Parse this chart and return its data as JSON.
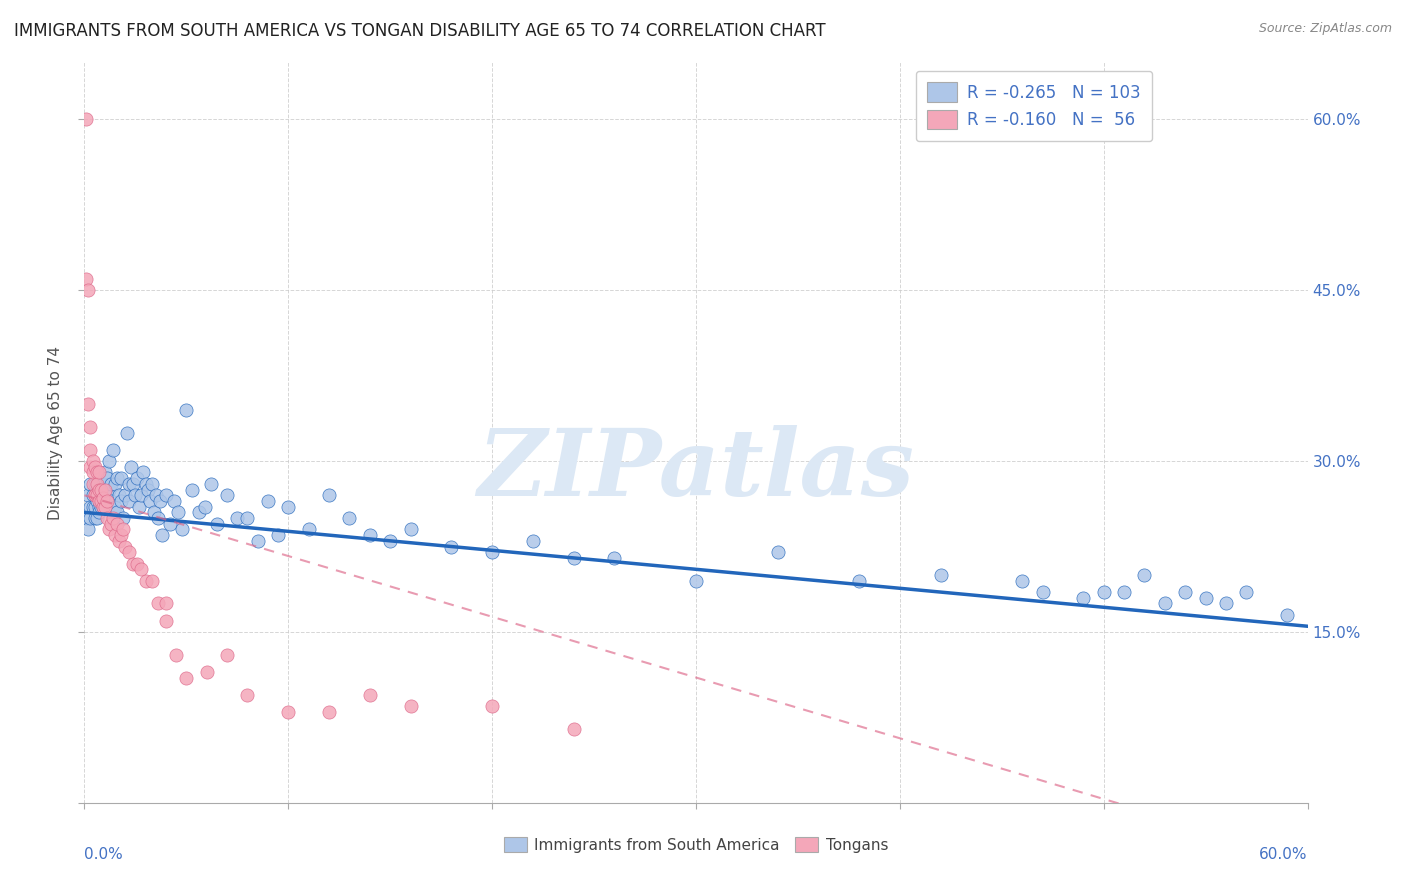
{
  "title": "IMMIGRANTS FROM SOUTH AMERICA VS TONGAN DISABILITY AGE 65 TO 74 CORRELATION CHART",
  "source": "Source: ZipAtlas.com",
  "ylabel": "Disability Age 65 to 74",
  "legend_blue_r": "-0.265",
  "legend_blue_n": "103",
  "legend_pink_r": "-0.160",
  "legend_pink_n": " 56",
  "blue_color": "#aec6e8",
  "pink_color": "#f4a7b9",
  "blue_line_color": "#2266bb",
  "pink_line_color": "#dd6688",
  "axis_color": "#4472c4",
  "watermark_color": "#dce8f5",
  "background_color": "#ffffff",
  "blue_scatter_x": [
    0.001,
    0.002,
    0.002,
    0.003,
    0.003,
    0.003,
    0.004,
    0.004,
    0.005,
    0.005,
    0.005,
    0.006,
    0.006,
    0.006,
    0.007,
    0.007,
    0.007,
    0.008,
    0.008,
    0.009,
    0.009,
    0.01,
    0.01,
    0.011,
    0.011,
    0.012,
    0.012,
    0.013,
    0.013,
    0.014,
    0.015,
    0.015,
    0.016,
    0.016,
    0.017,
    0.018,
    0.018,
    0.019,
    0.02,
    0.021,
    0.022,
    0.022,
    0.023,
    0.024,
    0.025,
    0.026,
    0.027,
    0.028,
    0.029,
    0.03,
    0.031,
    0.032,
    0.033,
    0.034,
    0.035,
    0.036,
    0.037,
    0.038,
    0.04,
    0.042,
    0.044,
    0.046,
    0.048,
    0.05,
    0.053,
    0.056,
    0.059,
    0.062,
    0.065,
    0.07,
    0.075,
    0.08,
    0.085,
    0.09,
    0.095,
    0.1,
    0.11,
    0.12,
    0.13,
    0.14,
    0.15,
    0.16,
    0.18,
    0.2,
    0.22,
    0.24,
    0.26,
    0.3,
    0.34,
    0.38,
    0.42,
    0.46,
    0.5,
    0.52,
    0.54,
    0.56,
    0.47,
    0.49,
    0.51,
    0.53,
    0.55,
    0.57,
    0.59
  ],
  "blue_scatter_y": [
    0.25,
    0.24,
    0.27,
    0.26,
    0.28,
    0.25,
    0.27,
    0.26,
    0.25,
    0.28,
    0.26,
    0.27,
    0.25,
    0.265,
    0.26,
    0.27,
    0.255,
    0.27,
    0.26,
    0.28,
    0.26,
    0.29,
    0.265,
    0.285,
    0.27,
    0.3,
    0.275,
    0.28,
    0.265,
    0.31,
    0.28,
    0.26,
    0.285,
    0.255,
    0.27,
    0.265,
    0.285,
    0.25,
    0.27,
    0.325,
    0.28,
    0.265,
    0.295,
    0.28,
    0.27,
    0.285,
    0.26,
    0.27,
    0.29,
    0.28,
    0.275,
    0.265,
    0.28,
    0.255,
    0.27,
    0.25,
    0.265,
    0.235,
    0.27,
    0.245,
    0.265,
    0.255,
    0.24,
    0.345,
    0.275,
    0.255,
    0.26,
    0.28,
    0.245,
    0.27,
    0.25,
    0.25,
    0.23,
    0.265,
    0.235,
    0.26,
    0.24,
    0.27,
    0.25,
    0.235,
    0.23,
    0.24,
    0.225,
    0.22,
    0.23,
    0.215,
    0.215,
    0.195,
    0.22,
    0.195,
    0.2,
    0.195,
    0.185,
    0.2,
    0.185,
    0.175,
    0.185,
    0.18,
    0.185,
    0.175,
    0.18,
    0.185,
    0.165
  ],
  "pink_scatter_x": [
    0.001,
    0.001,
    0.002,
    0.002,
    0.003,
    0.003,
    0.003,
    0.004,
    0.004,
    0.004,
    0.005,
    0.005,
    0.005,
    0.006,
    0.006,
    0.006,
    0.007,
    0.007,
    0.007,
    0.008,
    0.008,
    0.009,
    0.009,
    0.01,
    0.01,
    0.011,
    0.011,
    0.012,
    0.013,
    0.014,
    0.015,
    0.016,
    0.017,
    0.018,
    0.019,
    0.02,
    0.022,
    0.024,
    0.026,
    0.028,
    0.03,
    0.033,
    0.036,
    0.04,
    0.045,
    0.05,
    0.06,
    0.07,
    0.08,
    0.1,
    0.12,
    0.14,
    0.16,
    0.2,
    0.24,
    0.04
  ],
  "pink_scatter_y": [
    0.6,
    0.46,
    0.45,
    0.35,
    0.33,
    0.31,
    0.295,
    0.3,
    0.28,
    0.29,
    0.27,
    0.27,
    0.295,
    0.29,
    0.27,
    0.28,
    0.29,
    0.265,
    0.275,
    0.265,
    0.275,
    0.26,
    0.268,
    0.275,
    0.26,
    0.265,
    0.25,
    0.24,
    0.245,
    0.25,
    0.235,
    0.245,
    0.23,
    0.235,
    0.24,
    0.225,
    0.22,
    0.21,
    0.21,
    0.205,
    0.195,
    0.195,
    0.175,
    0.16,
    0.13,
    0.11,
    0.115,
    0.13,
    0.095,
    0.08,
    0.08,
    0.095,
    0.085,
    0.085,
    0.065,
    0.175
  ]
}
